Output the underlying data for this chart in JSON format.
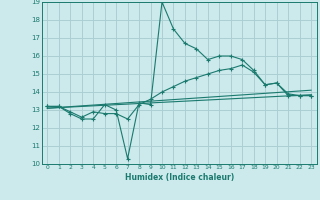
{
  "xlabel": "Humidex (Indice chaleur)",
  "bg_color": "#cce9ec",
  "grid_color": "#aacfd3",
  "line_color": "#1a7a6e",
  "xlim": [
    -0.5,
    23.5
  ],
  "ylim": [
    10,
    19
  ],
  "xticks": [
    0,
    1,
    2,
    3,
    4,
    5,
    6,
    7,
    8,
    9,
    10,
    11,
    12,
    13,
    14,
    15,
    16,
    17,
    18,
    19,
    20,
    21,
    22,
    23
  ],
  "yticks": [
    10,
    11,
    12,
    13,
    14,
    15,
    16,
    17,
    18,
    19
  ],
  "series": {
    "line1_x": [
      0,
      1,
      2,
      3,
      4,
      5,
      6,
      7,
      8,
      9,
      10,
      11,
      12,
      13,
      14,
      15,
      16,
      17,
      18,
      19,
      20,
      21,
      22,
      23
    ],
    "line1_y": [
      13.2,
      13.2,
      12.8,
      12.5,
      12.5,
      13.3,
      13.0,
      10.3,
      13.4,
      13.3,
      19.0,
      17.5,
      16.7,
      16.4,
      15.8,
      16.0,
      16.0,
      15.8,
      15.2,
      14.4,
      14.5,
      13.8,
      13.8,
      13.8
    ],
    "line2_x": [
      0,
      1,
      2,
      3,
      4,
      5,
      6,
      7,
      8,
      9,
      10,
      11,
      12,
      13,
      14,
      15,
      16,
      17,
      18,
      19,
      20,
      21,
      22,
      23
    ],
    "line2_y": [
      13.2,
      13.2,
      12.9,
      12.6,
      12.9,
      12.8,
      12.8,
      12.5,
      13.3,
      13.6,
      14.0,
      14.3,
      14.6,
      14.8,
      15.0,
      15.2,
      15.3,
      15.5,
      15.1,
      14.4,
      14.5,
      13.9,
      13.8,
      13.8
    ],
    "line3_x": [
      0,
      23
    ],
    "line3_y": [
      13.1,
      13.85
    ],
    "line4_x": [
      0,
      23
    ],
    "line4_y": [
      13.1,
      14.1
    ]
  }
}
